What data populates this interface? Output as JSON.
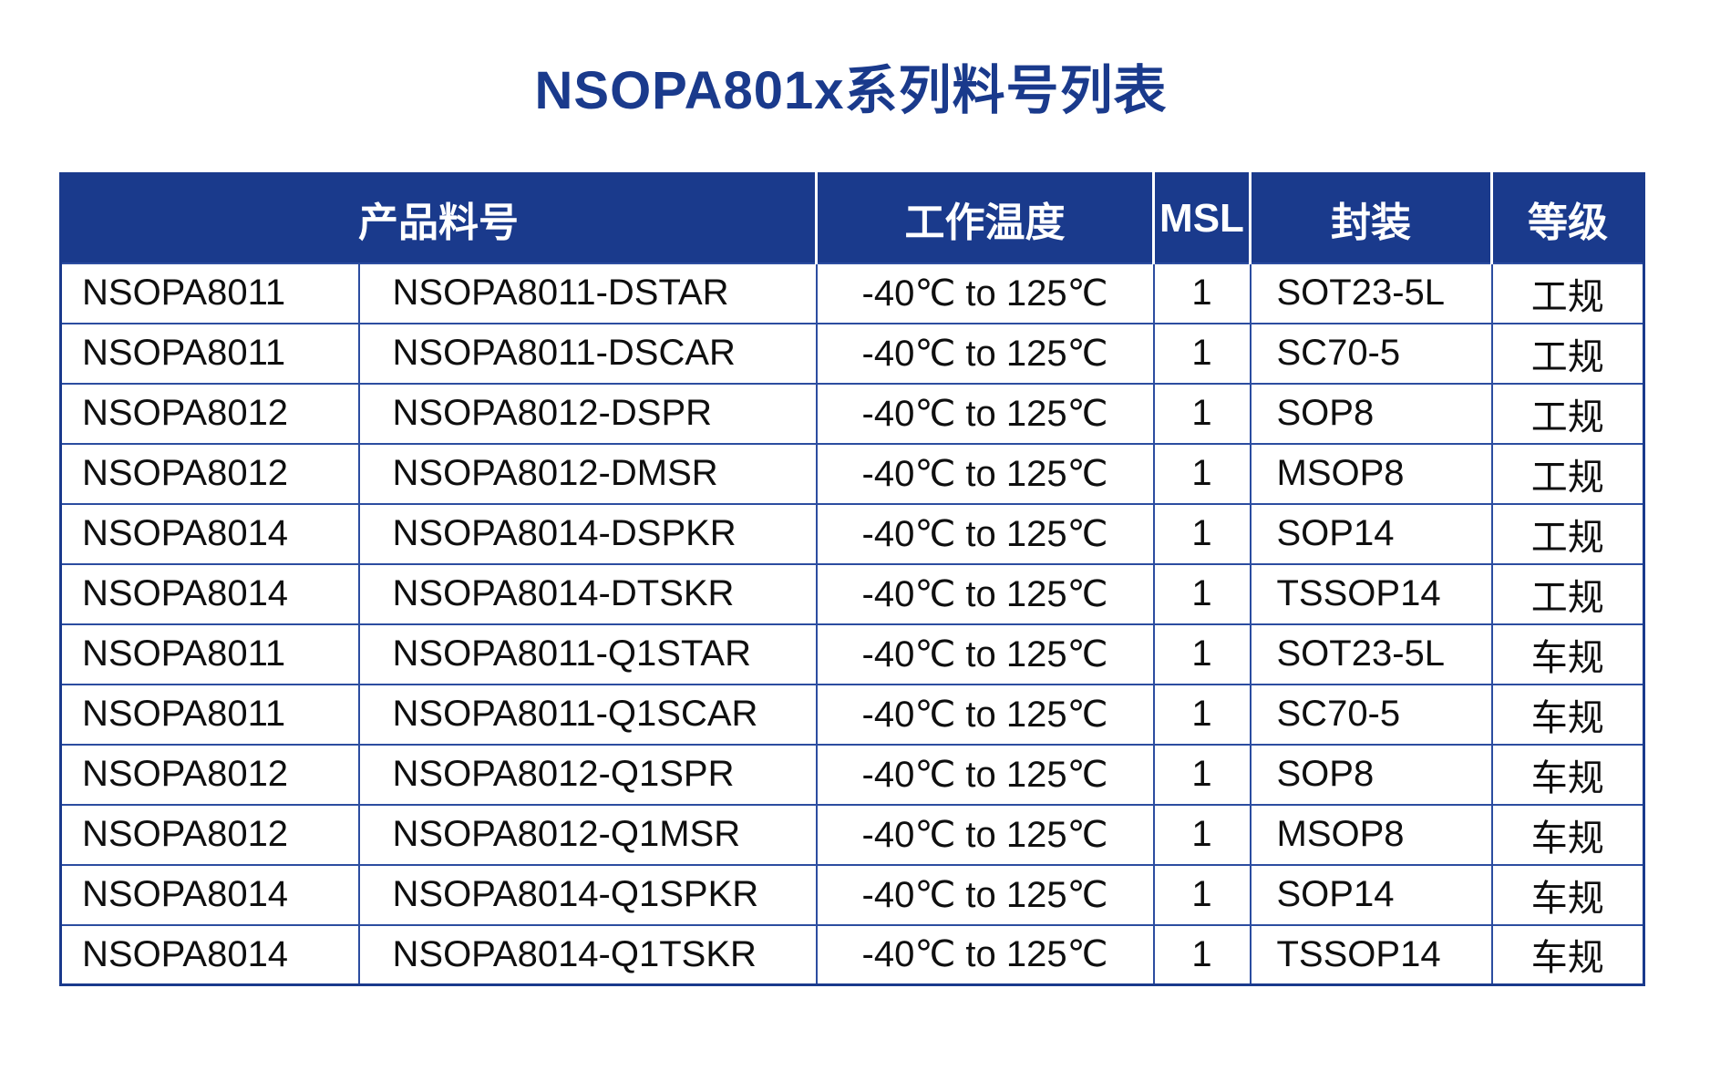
{
  "title": "NSOPA801x系列料号列表",
  "colors": {
    "navy": "#1a3a8c",
    "grid": "#2c4da0",
    "text": "#0f0f0f",
    "header_text": "#ffffff",
    "page_bg": "#ffffff"
  },
  "table": {
    "headers": [
      {
        "key": "product-part-number",
        "label": "产品料号",
        "colspan": 2
      },
      {
        "key": "operating-temperature",
        "label": "工作温度",
        "colspan": 1
      },
      {
        "key": "msl",
        "label": "MSL",
        "colspan": 1
      },
      {
        "key": "package",
        "label": "封装",
        "colspan": 1
      },
      {
        "key": "grade",
        "label": "等级",
        "colspan": 1
      }
    ],
    "rows": [
      [
        "NSOPA8011",
        "NSOPA8011-DSTAR",
        "-40℃ to 125℃",
        "1",
        "SOT23-5L",
        "工规"
      ],
      [
        "NSOPA8011",
        "NSOPA8011-DSCAR",
        "-40℃ to 125℃",
        "1",
        "SC70-5",
        "工规"
      ],
      [
        "NSOPA8012",
        "NSOPA8012-DSPR",
        "-40℃ to 125℃",
        "1",
        "SOP8",
        "工规"
      ],
      [
        "NSOPA8012",
        "NSOPA8012-DMSR",
        "-40℃ to 125℃",
        "1",
        "MSOP8",
        "工规"
      ],
      [
        "NSOPA8014",
        "NSOPA8014-DSPKR",
        "-40℃ to 125℃",
        "1",
        "SOP14",
        "工规"
      ],
      [
        "NSOPA8014",
        "NSOPA8014-DTSKR",
        "-40℃ to 125℃",
        "1",
        "TSSOP14",
        "工规"
      ],
      [
        "NSOPA8011",
        "NSOPA8011-Q1STAR",
        "-40℃ to 125℃",
        "1",
        "SOT23-5L",
        "车规"
      ],
      [
        "NSOPA8011",
        "NSOPA8011-Q1SCAR",
        "-40℃ to 125℃",
        "1",
        "SC70-5",
        "车规"
      ],
      [
        "NSOPA8012",
        "NSOPA8012-Q1SPR",
        "-40℃ to 125℃",
        "1",
        "SOP8",
        "车规"
      ],
      [
        "NSOPA8012",
        "NSOPA8012-Q1MSR",
        "-40℃ to 125℃",
        "1",
        "MSOP8",
        "车规"
      ],
      [
        "NSOPA8014",
        "NSOPA8014-Q1SPKR",
        "-40℃ to 125℃",
        "1",
        "SOP14",
        "车规"
      ],
      [
        "NSOPA8014",
        "NSOPA8014-Q1TSKR",
        "-40℃ to 125℃",
        "1",
        "TSSOP14",
        "车规"
      ]
    ]
  }
}
